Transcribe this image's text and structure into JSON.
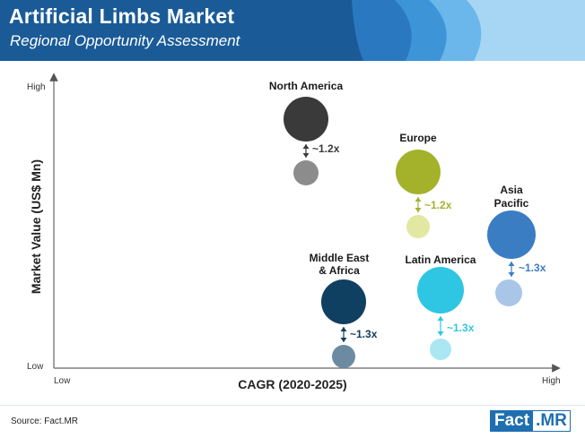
{
  "header": {
    "title": "Artificial Limbs Market",
    "subtitle": "Regional Opportunity Assessment"
  },
  "chart_data": {
    "type": "bubble",
    "xlabel": "CAGR (2020-2025)",
    "ylabel": "Market Value (US$ Mn)",
    "x_ticks": {
      "low": "Low",
      "high": "High"
    },
    "y_ticks": {
      "low": "Low",
      "high": "High"
    },
    "regions": [
      {
        "name": "North America",
        "color": "#3a3a3a",
        "small_color": "#8c8c8c",
        "multiplier": "~1.2x"
      },
      {
        "name": "Europe",
        "color": "#a4b22b",
        "small_color": "#e2e8a2",
        "multiplier": "~1.2x"
      },
      {
        "name": "Asia Pacific",
        "color": "#3a7dc3",
        "small_color": "#a9c6e8",
        "multiplier": "~1.3x"
      },
      {
        "name": "Middle East & Africa",
        "color": "#0f3f61",
        "small_color": "#6d8aa3",
        "multiplier": "~1.3x"
      },
      {
        "name": "Latin America",
        "color": "#2ec6e3",
        "small_color": "#abe6f3",
        "multiplier": "~1.3x"
      }
    ]
  },
  "footer": {
    "source": "Source: Fact.MR",
    "logo_left": "Fact",
    "logo_right": ".MR"
  }
}
